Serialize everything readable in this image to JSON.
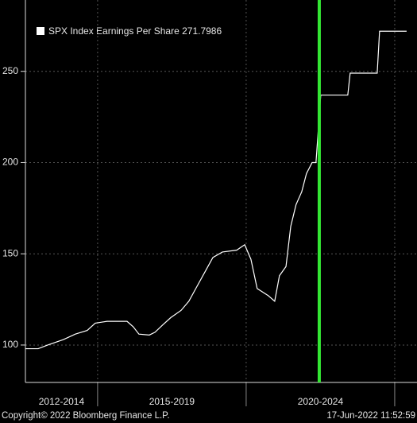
{
  "chart_data": {
    "type": "line",
    "legend": "SPX Index Earnings Per Share 271.7986",
    "x": [
      2012.57,
      2013.0,
      2013.32,
      2013.85,
      2014.25,
      2014.65,
      2014.92,
      2015.32,
      2015.99,
      2016.2,
      2016.39,
      2016.74,
      2016.93,
      2017.19,
      2017.46,
      2017.81,
      2018.07,
      2018.34,
      2018.61,
      2018.88,
      2019.2,
      2019.68,
      2019.95,
      2020.16,
      2020.37,
      2020.75,
      2020.96,
      2021.12,
      2021.34,
      2021.5,
      2021.68,
      2021.87,
      2022.03,
      2022.22,
      2022.35,
      2022.51,
      2023.42,
      2023.5,
      2024.41,
      2024.49,
      2025.4
    ],
    "values": [
      98,
      98,
      100,
      103,
      106,
      108,
      112,
      113,
      113,
      110,
      106,
      105.5,
      107,
      111,
      115,
      119,
      124,
      132,
      140,
      148,
      151,
      152,
      155,
      147,
      131,
      127,
      124,
      138,
      143,
      165,
      177,
      184,
      194,
      200,
      200,
      237,
      237,
      249,
      249,
      272,
      272
    ],
    "color": "#ffffff",
    "xlim": [
      2012.57,
      2025.75
    ],
    "xticks": [
      2012,
      2015,
      2020,
      2025
    ],
    "xtick_labels": [
      "2012-2014",
      "2015-2019",
      "2020-2024"
    ],
    "ylim": [
      79.5,
      289.1
    ],
    "yticks": [
      100,
      150,
      200,
      250
    ],
    "grid": true,
    "vline": {
      "x": 2022.46,
      "color": "#33e633"
    },
    "footer_left": "Copyright© 2022 Bloomberg Finance L.P.",
    "footer_right": "17-Jun-2022 11:52:59"
  }
}
